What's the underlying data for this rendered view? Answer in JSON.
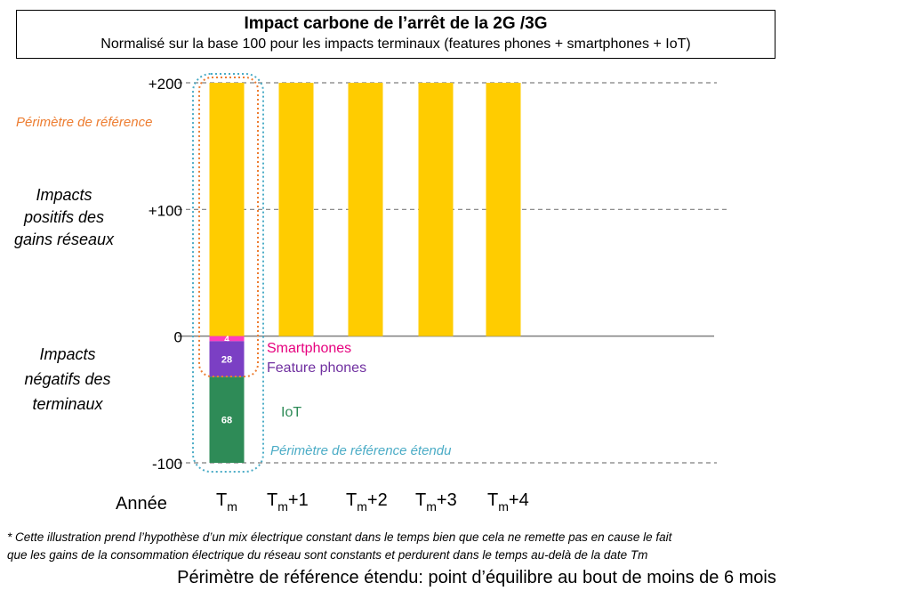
{
  "chart_data": {
    "type": "bar",
    "title": "Impact carbone de l’arrêt de la 2G /3G",
    "subtitle": "Normalisé sur la base 100 pour les impacts terminaux (features phones + smartphones + IoT)",
    "xlabel": "Année",
    "categories": [
      "Tm",
      "Tm+1",
      "Tm+2",
      "Tm+3",
      "Tm+4"
    ],
    "category_labels": [
      {
        "base": "T",
        "sub": "m",
        "suffix": ""
      },
      {
        "base": "T",
        "sub": "m",
        "suffix": "+1"
      },
      {
        "base": "T",
        "sub": "m",
        "suffix": "+2"
      },
      {
        "base": "T",
        "sub": "m",
        "suffix": "+3"
      },
      {
        "base": "T",
        "sub": "m",
        "suffix": "+4"
      }
    ],
    "ylim": [
      -100,
      200
    ],
    "yticks": [
      {
        "value": 200,
        "label": "+200"
      },
      {
        "value": 100,
        "label": "+100"
      },
      {
        "value": 0,
        "label": "0"
      },
      {
        "value": -100,
        "label": "-100"
      }
    ],
    "grid": true,
    "series": [
      {
        "name": "Gains réseaux",
        "color": "#FFCC00",
        "values": [
          200,
          200,
          200,
          200,
          200
        ]
      },
      {
        "name": "Smartphones",
        "color": "#FF3EBD",
        "values": [
          -4,
          null,
          null,
          null,
          null
        ],
        "label": "4"
      },
      {
        "name": "Feature phones",
        "color": "#7B3FC4",
        "values": [
          -28,
          null,
          null,
          null,
          null
        ],
        "label": "28"
      },
      {
        "name": "IoT",
        "color": "#2E8B57",
        "values": [
          -68,
          null,
          null,
          null,
          null
        ],
        "label": "68"
      }
    ],
    "series_label_colors": {
      "Smartphones": "#E6007E",
      "Feature phones": "#7030A0",
      "IoT": "#2E8B57"
    },
    "side_labels": {
      "positive": [
        "Impacts",
        "positifs des",
        "gains réseaux"
      ],
      "negative": [
        "Impacts",
        "négatifs des",
        "terminaux"
      ]
    },
    "perimeters": [
      {
        "label": "Périmètre de référence",
        "color": "#ED7D31"
      },
      {
        "label": "Périmètre de référence étendu",
        "color": "#4BACC6"
      }
    ]
  },
  "footnote_lines": [
    "* Cette illustration prend l’hypothèse d’un mix électrique constant dans le temps bien que cela ne remette pas en cause le fait",
    "que les gains de la consommation électrique du réseau sont constants et perdurent dans le temps au-delà de la date Tm"
  ],
  "conclusion": {
    "text": "Périmètre de référence étendu: point d’équilibre au bout de moins de ",
    "number": "6",
    "unit": " mois"
  }
}
